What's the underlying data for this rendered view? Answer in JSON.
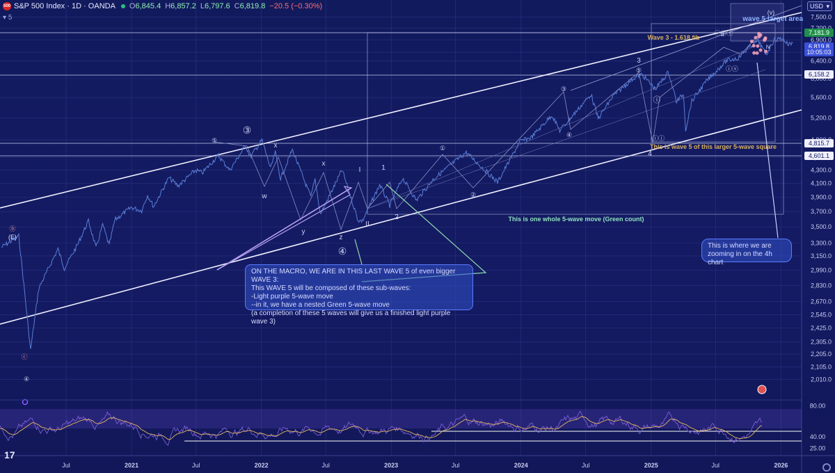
{
  "header": {
    "logo": "500",
    "title": "S&P 500 Index · 1D · OANDA",
    "o_label": "O",
    "o_value": "6,845.4",
    "h_label": "H",
    "h_value": "6,857.2",
    "l_label": "L",
    "l_value": "6,797.6",
    "c_label": "C",
    "c_value": "6,819.8",
    "change": "−20.5 (−0.30%)",
    "indicator_count": "5",
    "currency": "USD"
  },
  "colors": {
    "background": "#131a5c",
    "price_line": "#5b7fd9",
    "channel": "#f0f0ff",
    "green_count": "#8fd9b0",
    "purple": "#b8a0f0",
    "rsi": "#7c5fd6",
    "rsi_ma": "#e8b860",
    "up_price_label": "#1f8f4a",
    "down_price_label": "#3a50d8"
  },
  "notes": {
    "macro": [
      "ON THE MACRO, WE ARE IN THIS LAST WAVE 5 of even bigger WAVE 3:",
      "This WAVE 5 will be composed of these sub-waves:",
      "",
      "-Light purple 5-wave move",
      "--in it, we have a nested Green 5-wave move",
      "(a completion of these 5 waves will give us a finished light purple wave 3)"
    ],
    "zoom": [
      "This is where we are",
      "zooming in on the 4h chart"
    ],
    "wave5_target": "wave 5 target area",
    "wave3_fib": "Wave 3 - 1.618 fib",
    "square_label": "This is wave 5 of this larger 5-wave square",
    "green_count": "This is one whole 5-wave move (Green count)"
  },
  "chart_data": {
    "type": "line",
    "title": "S&P 500 Index · 1D · OANDA",
    "xlabel": "",
    "ylabel": "",
    "x_tick_labels": [
      "Jul",
      "2021",
      "Jul",
      "2022",
      "Jul",
      "2023",
      "Jul",
      "2024",
      "Jul",
      "2025",
      "Jul",
      "2026"
    ],
    "y_scale": "log",
    "ylim": [
      1900,
      7900
    ],
    "y_tick_labels": [
      "7,500.0",
      "7,200.0",
      "6,900.0",
      "6,600.0",
      "6,400.0",
      "6,000.0",
      "5,600.0",
      "5,200.0",
      "4,800.0",
      "4,500.0",
      "4,300.0",
      "4,100.0",
      "3,900.0",
      "3,700.0",
      "3,500.0",
      "3,300.0",
      "3,150.0",
      "2,990.0",
      "2,830.0",
      "2,670.0",
      "2,545.0",
      "2,425.0",
      "2,305.0",
      "2,205.0",
      "2,105.0",
      "2,010.0"
    ],
    "price_labels": [
      {
        "value": "7,181.9",
        "kind": "up"
      },
      {
        "value": "6,819.8",
        "kind": "down"
      },
      {
        "value": "10:05:03",
        "kind": "down"
      },
      {
        "value": "6,158.2",
        "kind": "plain"
      },
      {
        "value": "4,815.7",
        "kind": "plain"
      },
      {
        "value": "4,601.1",
        "kind": "plain"
      }
    ],
    "series": [
      {
        "values": [
          [
            "2020-01-01",
            3250
          ],
          [
            "2020-02-19",
            3386
          ],
          [
            "2020-03-23",
            2237
          ],
          [
            "2020-04-15",
            2800
          ],
          [
            "2020-06-08",
            3230
          ],
          [
            "2020-06-26",
            3010
          ],
          [
            "2020-08-01",
            3270
          ],
          [
            "2020-09-02",
            3580
          ],
          [
            "2020-09-23",
            3240
          ],
          [
            "2020-10-12",
            3530
          ],
          [
            "2020-10-30",
            3270
          ],
          [
            "2020-11-15",
            3590
          ],
          [
            "2020-12-31",
            3756
          ],
          [
            "2021-01-29",
            3714
          ],
          [
            "2021-02-15",
            3930
          ],
          [
            "2021-03-04",
            3768
          ],
          [
            "2021-04-16",
            4185
          ],
          [
            "2021-05-12",
            4063
          ],
          [
            "2021-06-30",
            4300
          ],
          [
            "2021-07-19",
            4258
          ],
          [
            "2021-09-02",
            4537
          ],
          [
            "2021-10-04",
            4300
          ],
          [
            "2021-11-18",
            4705
          ],
          [
            "2021-12-01",
            4513
          ],
          [
            "2022-01-03",
            4796
          ],
          [
            "2022-01-27",
            4326
          ],
          [
            "2022-02-09",
            4587
          ],
          [
            "2022-02-24",
            4170
          ],
          [
            "2022-03-29",
            4631
          ],
          [
            "2022-05-20",
            3900
          ],
          [
            "2022-06-01",
            4160
          ],
          [
            "2022-06-16",
            3666
          ],
          [
            "2022-08-16",
            4305
          ],
          [
            "2022-09-30",
            3585
          ],
          [
            "2022-10-12",
            3577
          ],
          [
            "2022-11-30",
            4080
          ],
          [
            "2022-12-28",
            3783
          ],
          [
            "2023-02-02",
            4179
          ],
          [
            "2023-03-13",
            3855
          ],
          [
            "2023-05-01",
            4170
          ],
          [
            "2023-07-31",
            4589
          ],
          [
            "2023-10-27",
            4117
          ],
          [
            "2023-12-29",
            4770
          ],
          [
            "2024-01-31",
            4850
          ],
          [
            "2024-03-28",
            5254
          ],
          [
            "2024-04-19",
            4967
          ],
          [
            "2024-07-16",
            5667
          ],
          [
            "2024-08-05",
            5186
          ],
          [
            "2024-09-16",
            5630
          ],
          [
            "2024-11-11",
            6001
          ],
          [
            "2024-12-06",
            6090
          ],
          [
            "2025-01-13",
            5773
          ],
          [
            "2025-02-19",
            6144
          ],
          [
            "2025-03-13",
            5521
          ],
          [
            "2025-04-02",
            5670
          ],
          [
            "2025-04-08",
            4982
          ],
          [
            "2025-04-25",
            5525
          ],
          [
            "2025-06-05",
            5940
          ],
          [
            "2025-07-31",
            6400
          ],
          [
            "2025-09-01",
            6460
          ],
          [
            "2025-10-08",
            6750
          ],
          [
            "2025-10-29",
            6890
          ],
          [
            "2025-11-20",
            6540
          ],
          [
            "2025-12-12",
            6900
          ],
          [
            "2026-01-06",
            6945
          ],
          [
            "2026-01-20",
            6796
          ],
          [
            "2026-02-03",
            6819.8
          ]
        ]
      }
    ]
  },
  "wave_labels": {
    "big_wave3": "③",
    "big_wave4": "④",
    "left_5": "⑤",
    "left_b": "ⓑ",
    "left_e": "(E)",
    "left_c": "ⓒ",
    "left_4": "④",
    "w": "w",
    "x1": "x",
    "y": "y",
    "x2": "x",
    "z": "z",
    "roman_i": "I",
    "roman_ii": "II",
    "g1": "1",
    "g2": "2",
    "g3": "3",
    "g4": "4",
    "g5": "5",
    "c1": "①",
    "c2": "②",
    "c3": "③",
    "c4": "④",
    "c5": "⑤",
    "ri": "ⓘ",
    "rii": "ⓘⓘ",
    "riii": "ⓘⓘⓘ",
    "riv": "ⓘⓥ",
    "rv": "(v)",
    "iv": "iv",
    "n5": "5"
  },
  "rsi": {
    "levels": [
      "80.00",
      "40.00",
      "25.00"
    ]
  }
}
